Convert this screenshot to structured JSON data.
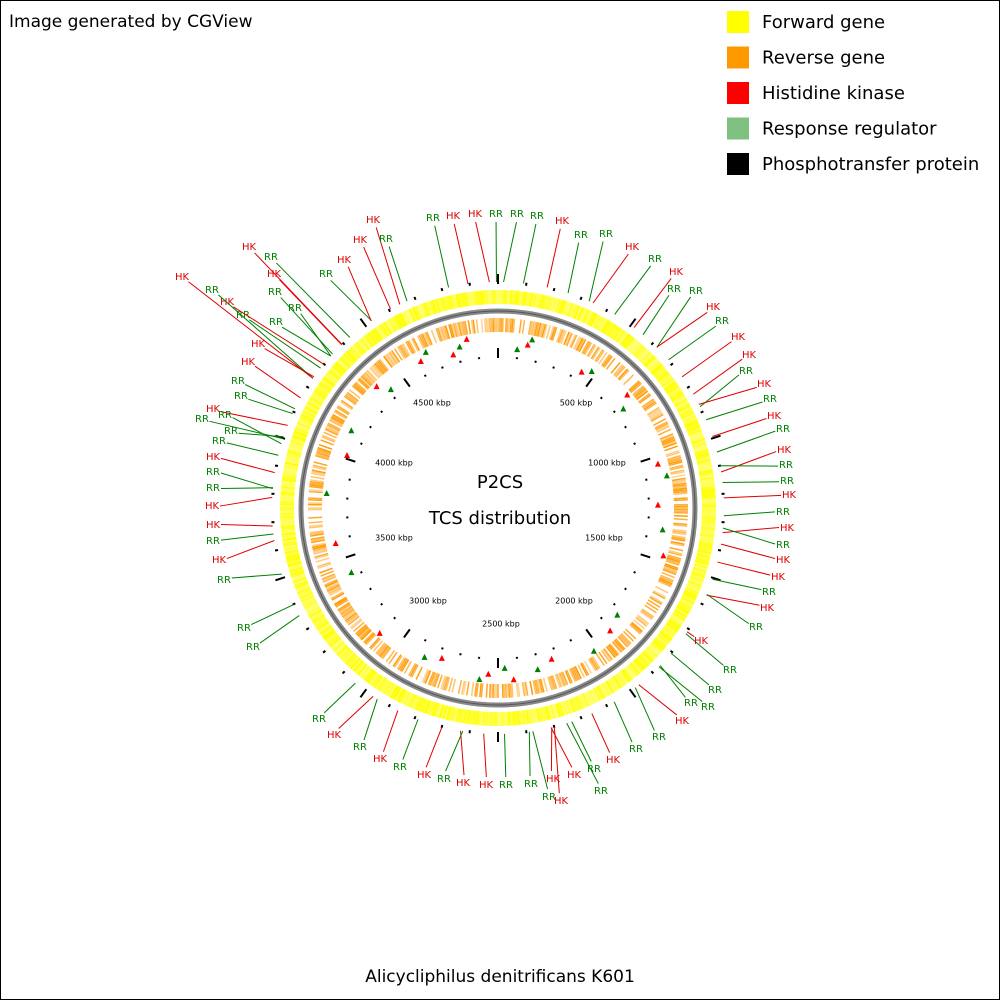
{
  "header": {
    "credit": "Image generated by CGView"
  },
  "legend": [
    {
      "label": "Forward gene",
      "color": "#ffff00"
    },
    {
      "label": "Reverse gene",
      "color": "#ff9900"
    },
    {
      "label": "Histidine kinase",
      "color": "#ff0000"
    },
    {
      "label": "Response regulator",
      "color": "#80c080"
    },
    {
      "label": "Phosphotransfer protein",
      "color": "#000000"
    }
  ],
  "center": {
    "title": "P2CS",
    "subtitle": "TCS distribution"
  },
  "scale_labels": [
    "500 kbp",
    "1000 kbp",
    "1500 kbp",
    "2000 kbp",
    "2500 kbp",
    "3000 kbp",
    "3500 kbp",
    "4000 kbp",
    "4500 kbp"
  ],
  "feature_labels": [
    "HK",
    "RR",
    "RR",
    "HK",
    "HK",
    "RR",
    "RR",
    "HK",
    "RR",
    "RR",
    "HK",
    "RR",
    "HK",
    "RR",
    "RR",
    "HK",
    "RR",
    "HK",
    "HK",
    "RR",
    "HK",
    "RR",
    "HK",
    "RR",
    "HK",
    "RR",
    "RR",
    "HK",
    "RR",
    "HK",
    "RR",
    "HK",
    "HK",
    "RR",
    "HK",
    "RR",
    "RR",
    "RR",
    "RR",
    "HK",
    "RR",
    "RR",
    "HK",
    "RR",
    "HK",
    "HK",
    "RR",
    "RR",
    "HK",
    "HK",
    "RR",
    "HK",
    "RR",
    "HK",
    "RR",
    "HK",
    "RR",
    "RR",
    "RR",
    "HK",
    "RR",
    "HK",
    "RR",
    "RR",
    "HK",
    "RR",
    "HK",
    "RR",
    "RR",
    "HK",
    "RR",
    "HK",
    "RR",
    "HK",
    "RR",
    "RR",
    "RR",
    "HK",
    "RR",
    "HK",
    "RR",
    "HK",
    "HK",
    "RR",
    "RR",
    "HK",
    "HK",
    "RR",
    "RR",
    "RR",
    "HK",
    "RR",
    "HK",
    "RR",
    "RR"
  ],
  "footer": {
    "organism": "Alicycliphilus denitrificans K601"
  }
}
